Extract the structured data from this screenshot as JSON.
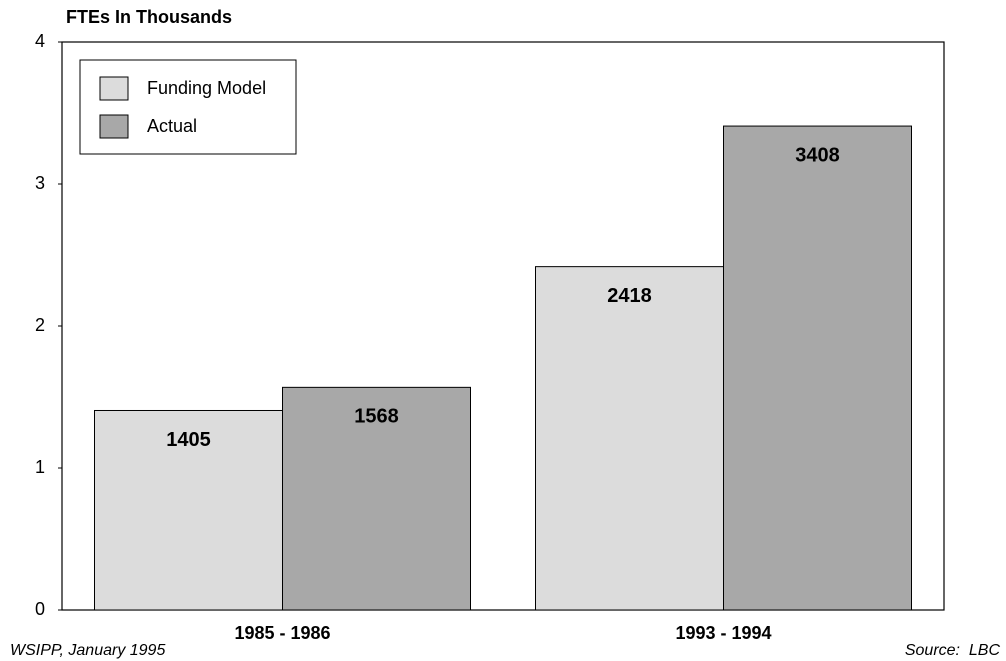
{
  "chart_data": {
    "type": "bar",
    "title": "FTEs In Thousands",
    "categories": [
      "1985 - 1986",
      "1993 - 1994"
    ],
    "series": [
      {
        "name": "Funding Model",
        "color": "#dcdcdc",
        "values": [
          1.405,
          2.418
        ],
        "value_labels": [
          "1405",
          "2418"
        ]
      },
      {
        "name": "Actual",
        "color": "#a8a8a8",
        "values": [
          1.568,
          3.408
        ],
        "value_labels": [
          "1568",
          "3408"
        ]
      }
    ],
    "ylim": [
      0,
      4
    ],
    "yticks": [
      0,
      1,
      2,
      3,
      4
    ],
    "grid": false,
    "legend": "upper left",
    "credit": "WSIPP, January 1995",
    "source": "Source:  LBC"
  }
}
